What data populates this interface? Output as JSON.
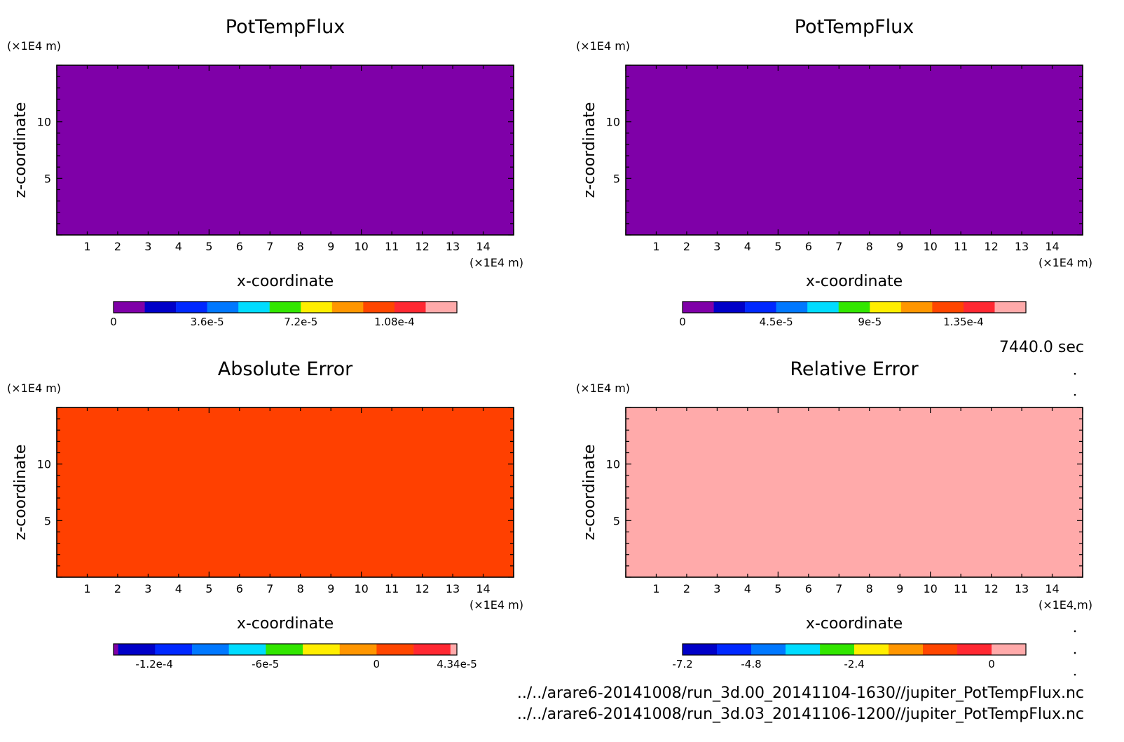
{
  "time_label": "7440.0 sec",
  "file_paths": [
    "../../arare6-20141008/run_3d.00_20141104-1630//jupiter_PotTempFlux.nc",
    "../../arare6-20141008/run_3d.03_20141106-1200//jupiter_PotTempFlux.nc"
  ],
  "chart_data": [
    {
      "type": "heatmap",
      "title": "PotTempFlux",
      "xlabel": "x-coordinate",
      "ylabel": "z-coordinate",
      "x_unit": "(×1E4 m)",
      "y_unit": "(×1E4 m)",
      "xlim": [
        0,
        15
      ],
      "ylim": [
        0,
        15
      ],
      "x_ticks": [
        "1",
        "2",
        "3",
        "4",
        "5",
        "6",
        "7",
        "8",
        "9",
        "10",
        "11",
        "12",
        "13",
        "14"
      ],
      "y_ticks": [
        "5",
        "10"
      ],
      "fill_color": "#7f00a8",
      "colorbar": {
        "colors": [
          "#7f00a8",
          "#0000c8",
          "#0028ff",
          "#0078ff",
          "#00dcff",
          "#32e600",
          "#ffee00",
          "#ff9600",
          "#ff4600",
          "#ff2832",
          "#ffaaaa"
        ],
        "tick_labels": [
          {
            "label": "0",
            "index": 0
          },
          {
            "label": "3.6e-5",
            "index": 3
          },
          {
            "label": "7.2e-5",
            "index": 6
          },
          {
            "label": "1.08e-4",
            "index": 9
          }
        ]
      }
    },
    {
      "type": "heatmap",
      "title": "PotTempFlux",
      "xlabel": "x-coordinate",
      "ylabel": "z-coordinate",
      "x_unit": "(×1E4 m)",
      "y_unit": "(×1E4 m)",
      "xlim": [
        0,
        15
      ],
      "ylim": [
        0,
        15
      ],
      "x_ticks": [
        "1",
        "2",
        "3",
        "4",
        "5",
        "6",
        "7",
        "8",
        "9",
        "10",
        "11",
        "12",
        "13",
        "14"
      ],
      "y_ticks": [
        "5",
        "10"
      ],
      "fill_color": "#7f00a8",
      "colorbar": {
        "colors": [
          "#7f00a8",
          "#0000c8",
          "#0028ff",
          "#0078ff",
          "#00dcff",
          "#32e600",
          "#ffee00",
          "#ff9600",
          "#ff4600",
          "#ff2832",
          "#ffaaaa"
        ],
        "tick_labels": [
          {
            "label": "0",
            "index": 0
          },
          {
            "label": "4.5e-5",
            "index": 3
          },
          {
            "label": "9e-5",
            "index": 6
          },
          {
            "label": "1.35e-4",
            "index": 9
          }
        ]
      }
    },
    {
      "type": "heatmap",
      "title": "Absolute Error",
      "xlabel": "x-coordinate",
      "ylabel": "z-coordinate",
      "x_unit": "(×1E4 m)",
      "y_unit": "(×1E4 m)",
      "xlim": [
        0,
        15
      ],
      "ylim": [
        0,
        15
      ],
      "x_ticks": [
        "1",
        "2",
        "3",
        "4",
        "5",
        "6",
        "7",
        "8",
        "9",
        "10",
        "11",
        "12",
        "13",
        "14"
      ],
      "y_ticks": [
        "5",
        "10"
      ],
      "fill_color": "#ff4000",
      "colorbar": {
        "colors": [
          "#7f00a8",
          "#0000c8",
          "#0028ff",
          "#0078ff",
          "#00dcff",
          "#32e600",
          "#ffee00",
          "#ff9600",
          "#ff4600",
          "#ff2832",
          "#ffaaaa"
        ],
        "widths": [
          0.25,
          2,
          2,
          2,
          2,
          2,
          2,
          2,
          2,
          2,
          0.35
        ],
        "tick_labels": [
          {
            "label": "-1.2e-4",
            "value": -0.00012
          },
          {
            "label": "-6e-5",
            "value": -6e-05
          },
          {
            "label": "0",
            "value": 0
          },
          {
            "label": "4.34e-5",
            "value": 4.34e-05
          }
        ],
        "range": [
          -0.000142,
          4.34e-05
        ]
      }
    },
    {
      "type": "heatmap",
      "title": "Relative Error",
      "xlabel": "x-coordinate",
      "ylabel": "z-coordinate",
      "x_unit": "(×1E4 m)",
      "y_unit": "(×1E4 m)",
      "xlim": [
        0,
        15
      ],
      "ylim": [
        0,
        15
      ],
      "x_ticks": [
        "1",
        "2",
        "3",
        "4",
        "5",
        "6",
        "7",
        "8",
        "9",
        "10",
        "11",
        "12",
        "13",
        "14"
      ],
      "y_ticks": [
        "5",
        "10"
      ],
      "fill_color": "#ffaaaa",
      "colorbar": {
        "colors": [
          "#0000c8",
          "#0028ff",
          "#0078ff",
          "#00dcff",
          "#32e600",
          "#ffee00",
          "#ff9600",
          "#ff4600",
          "#ff2832",
          "#ffaaaa"
        ],
        "tick_labels": [
          {
            "label": "-7.2",
            "index": 0
          },
          {
            "label": "-4.8",
            "index": 2
          },
          {
            "label": "-2.4",
            "index": 5
          },
          {
            "label": "0",
            "index": 9
          }
        ]
      }
    }
  ]
}
